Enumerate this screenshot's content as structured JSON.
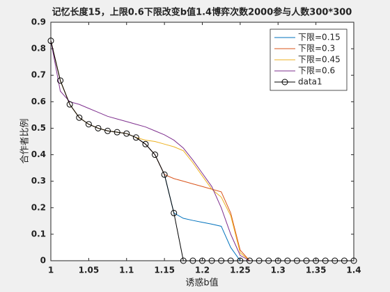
{
  "chart_data": {
    "type": "line",
    "title": "记忆长度15，上限0.6下限改变b值1.4博弈次数2000参与人数300*300",
    "x_label": "诱惑b值",
    "y_label": "合作者比例",
    "x": [
      1,
      1.0125,
      1.025,
      1.0375,
      1.05,
      1.0625,
      1.075,
      1.0875,
      1.1,
      1.1125,
      1.125,
      1.1375,
      1.15,
      1.1625,
      1.175,
      1.1875,
      1.2,
      1.2125,
      1.225,
      1.2375,
      1.25,
      1.2625,
      1.275,
      1.2875,
      1.3,
      1.3125,
      1.325,
      1.3375,
      1.35,
      1.3625,
      1.375,
      1.3875,
      1.4
    ],
    "series": [
      {
        "name": "下限=0.15",
        "color": "#0072bd",
        "values": [
          0.83,
          0.68,
          0.59,
          0.54,
          0.515,
          0.5,
          0.49,
          0.485,
          0.48,
          0.465,
          0.44,
          0.4,
          0.325,
          0.18,
          0.16,
          0.152,
          0.145,
          0.138,
          0.13,
          0.05,
          0,
          0,
          0,
          0,
          0,
          0,
          0,
          0,
          0,
          0,
          0,
          0,
          0
        ]
      },
      {
        "name": "下限=0.3",
        "color": "#d95319",
        "values": [
          0.83,
          0.68,
          0.59,
          0.54,
          0.515,
          0.5,
          0.49,
          0.485,
          0.48,
          0.465,
          0.44,
          0.4,
          0.325,
          0.31,
          0.3,
          0.29,
          0.28,
          0.27,
          0.26,
          0.18,
          0.04,
          0,
          0,
          0,
          0,
          0,
          0,
          0,
          0,
          0,
          0,
          0,
          0
        ]
      },
      {
        "name": "下限=0.45",
        "color": "#edb120",
        "values": [
          0.83,
          0.68,
          0.59,
          0.54,
          0.515,
          0.5,
          0.49,
          0.485,
          0.48,
          0.465,
          0.455,
          0.45,
          0.44,
          0.43,
          0.415,
          0.37,
          0.32,
          0.27,
          0.24,
          0.17,
          0.03,
          0,
          0,
          0,
          0,
          0,
          0,
          0,
          0,
          0,
          0,
          0,
          0
        ]
      },
      {
        "name": "下限=0.6",
        "color": "#7e2f8e",
        "values": [
          0.83,
          0.64,
          0.6,
          0.59,
          0.575,
          0.56,
          0.545,
          0.535,
          0.525,
          0.515,
          0.505,
          0.49,
          0.475,
          0.455,
          0.425,
          0.38,
          0.33,
          0.28,
          0.2,
          0.1,
          0.02,
          0,
          0,
          0,
          0,
          0,
          0,
          0,
          0,
          0,
          0,
          0,
          0
        ]
      },
      {
        "name": "data1",
        "color": "#000000",
        "marker": "o",
        "values": [
          0.83,
          0.68,
          0.59,
          0.54,
          0.515,
          0.5,
          0.49,
          0.485,
          0.48,
          0.465,
          0.44,
          0.4,
          0.325,
          0.18,
          0,
          0,
          0,
          0,
          0,
          0,
          0,
          0,
          0,
          0,
          0,
          0,
          0,
          0,
          0,
          0,
          0,
          0,
          0
        ]
      }
    ],
    "xlim": [
      1,
      1.4
    ],
    "xticks": [
      1,
      1.05,
      1.1,
      1.15,
      1.2,
      1.25,
      1.3,
      1.35,
      1.4
    ],
    "ylim": [
      0,
      0.9
    ],
    "yticks": [
      0,
      0.1,
      0.2,
      0.3,
      0.4,
      0.5,
      0.6,
      0.7,
      0.8,
      0.9
    ],
    "legend": "top-right"
  }
}
